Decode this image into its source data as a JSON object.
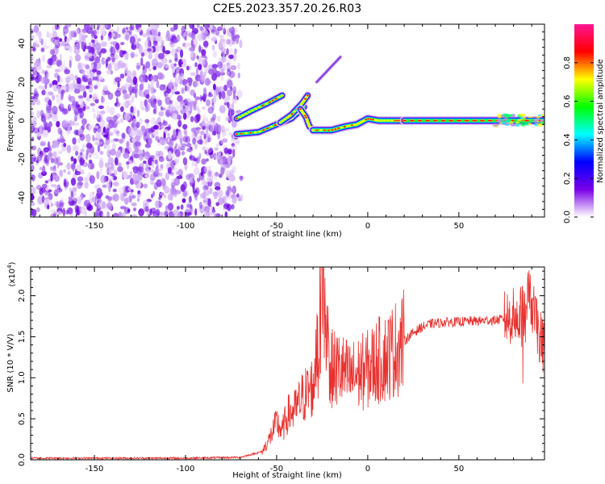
{
  "figure": {
    "title": "C2E5.2023.357.20.26.R03"
  },
  "chart_data": [
    {
      "type": "heatmap",
      "xlabel": "Height of straight line (km)",
      "ylabel": "Frequency (Hz)",
      "xlim": [
        -185,
        97
      ],
      "ylim": [
        -50,
        50
      ],
      "xticks": [
        -150,
        -100,
        -50,
        0,
        50
      ],
      "yticks": [
        -40,
        -20,
        0,
        20,
        40
      ],
      "noise_region_x": [
        -185,
        -73
      ],
      "echo_segments": [
        {
          "x": [
            -72,
            -64,
            -55,
            -47
          ],
          "y": [
            1,
            5,
            9,
            13
          ]
        },
        {
          "x": [
            -72,
            -60,
            -50,
            -42,
            -35
          ],
          "y": [
            -7,
            -6,
            -2,
            1,
            7
          ]
        },
        {
          "x": [
            -48,
            -42,
            -36,
            -33
          ],
          "y": [
            -1,
            3,
            9,
            13
          ]
        },
        {
          "x": [
            -37,
            -34,
            -32,
            -30
          ],
          "y": [
            6,
            2,
            -3,
            -5
          ]
        },
        {
          "x": [
            -30,
            -20,
            -12,
            -6,
            0,
            6,
            15,
            20
          ],
          "y": [
            -5,
            -5,
            -3,
            -2,
            1,
            0,
            0,
            0
          ]
        },
        {
          "x": [
            20,
            40,
            60,
            80,
            97
          ],
          "y": [
            0,
            0,
            0,
            0,
            0
          ]
        },
        {
          "x": [
            -28,
            -20,
            -15
          ],
          "y": [
            20,
            28,
            33
          ]
        }
      ],
      "colorbar": {
        "label": "Normalized spectral amplitude",
        "range": [
          0,
          1
        ],
        "ticks": [
          0.0,
          0.2,
          0.4,
          0.6,
          0.8
        ],
        "colors": [
          "#ffffff",
          "#7a00e8",
          "#0000ff",
          "#00ffff",
          "#00ff00",
          "#ffff00",
          "#ff0000",
          "#ff1493"
        ]
      }
    },
    {
      "type": "line",
      "xlabel": "Height of straight line (km)",
      "ylabel": "SNR (10 * V/V)",
      "scale_note": "(x10",
      "scale_exp": "4",
      "scale_close": ")",
      "xlim": [
        -185,
        97
      ],
      "ylim": [
        0,
        2.35
      ],
      "xticks": [
        -150,
        -100,
        -50,
        0,
        50
      ],
      "yticks": [
        0.0,
        0.5,
        1.0,
        1.5,
        2.0
      ],
      "line_color": "#e8312f",
      "series": [
        {
          "x": [
            -185,
            -150,
            -100,
            -70,
            -58,
            -54,
            -50,
            -47,
            -44,
            -40,
            -36,
            -30,
            -27,
            -25,
            -23,
            -20,
            -15,
            -10,
            -5,
            0,
            5,
            10,
            15,
            20,
            25,
            30,
            35,
            40,
            45,
            50,
            55,
            60,
            65,
            70,
            75,
            80,
            82,
            85,
            88,
            90,
            93,
            97
          ],
          "values": [
            0.02,
            0.02,
            0.02,
            0.03,
            0.1,
            0.25,
            0.45,
            0.35,
            0.55,
            0.6,
            0.75,
            0.9,
            1.4,
            2.3,
            1.6,
            1.1,
            1.1,
            1.0,
            1.05,
            1.1,
            1.2,
            1.25,
            1.35,
            1.45,
            1.55,
            1.62,
            1.66,
            1.67,
            1.68,
            1.68,
            1.69,
            1.69,
            1.7,
            1.7,
            1.72,
            1.75,
            1.7,
            1.8,
            2.0,
            1.9,
            1.6,
            1.35
          ]
        }
      ]
    }
  ]
}
